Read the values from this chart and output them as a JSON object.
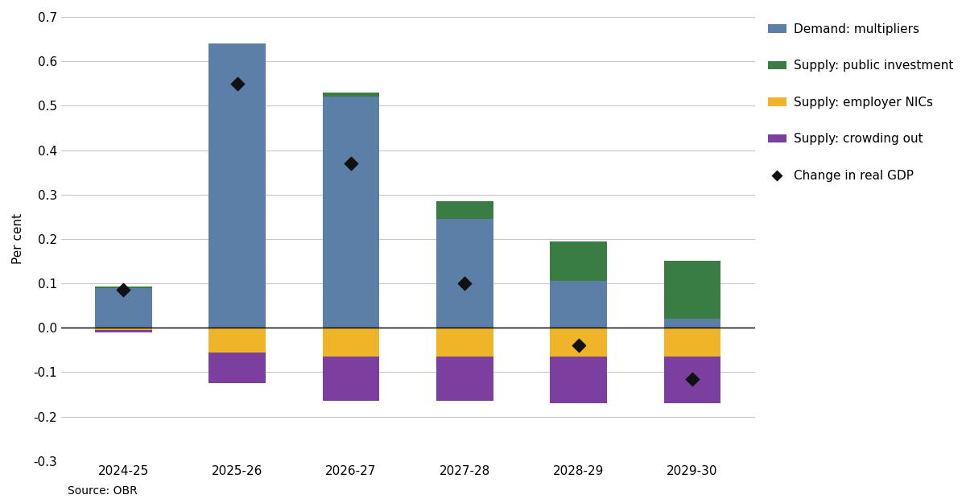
{
  "categories": [
    "2024-25",
    "2025-26",
    "2026-27",
    "2027-28",
    "2028-29",
    "2029-30"
  ],
  "demand_multipliers": [
    0.09,
    0.64,
    0.52,
    0.245,
    0.105,
    0.02
  ],
  "supply_public_inv": [
    0.002,
    0.0,
    0.01,
    0.04,
    0.09,
    0.13
  ],
  "supply_employer_nics": [
    -0.005,
    -0.055,
    -0.065,
    -0.065,
    -0.065,
    -0.065
  ],
  "supply_crowding_out": [
    -0.005,
    -0.07,
    -0.1,
    -0.1,
    -0.105,
    -0.105
  ],
  "gdp_change": [
    0.085,
    0.55,
    0.37,
    0.1,
    -0.04,
    -0.115
  ],
  "color_demand": "#5b7fa6",
  "color_public_inv": "#3a7d44",
  "color_employer_nics": "#f0b429",
  "color_crowding_out": "#7b3fa0",
  "color_gdp_marker": "#111111",
  "ylabel": "Per cent",
  "ylim_min": -0.3,
  "ylim_max": 0.7,
  "yticks": [
    -0.3,
    -0.2,
    -0.1,
    0.0,
    0.1,
    0.2,
    0.3,
    0.4,
    0.5,
    0.6,
    0.7
  ],
  "source": "Source: OBR",
  "legend_labels": [
    "Demand: multipliers",
    "Supply: public investment",
    "Supply: employer NICs",
    "Supply: crowding out",
    "Change in real GDP"
  ],
  "background_color": "#ffffff",
  "grid_color": "#c8c8c8"
}
